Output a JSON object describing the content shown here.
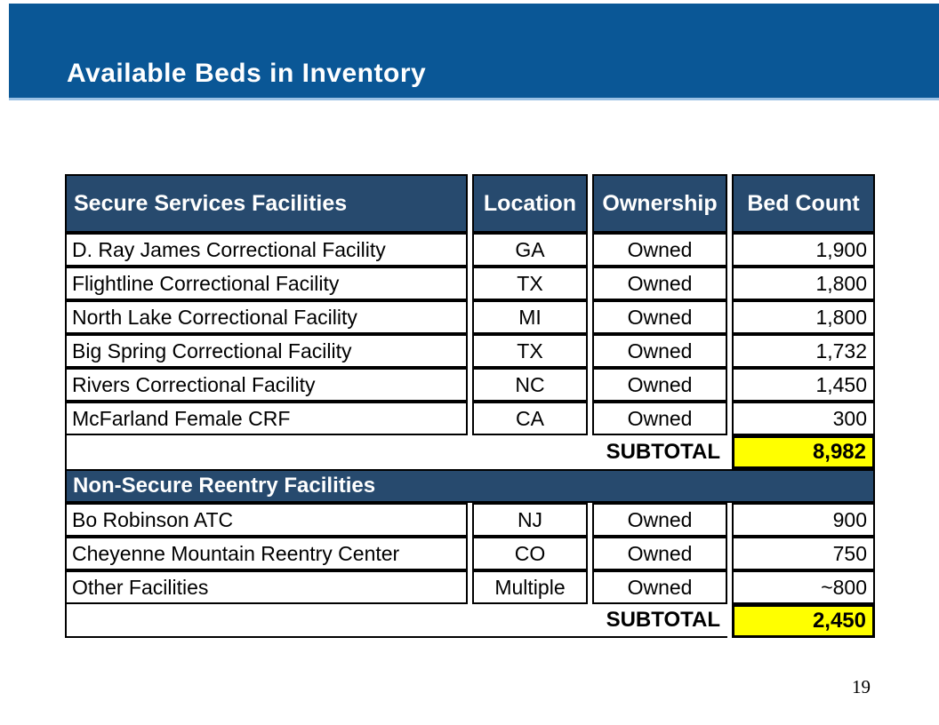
{
  "slide": {
    "title": "Available Beds in Inventory",
    "page_number": "19"
  },
  "colors": {
    "title_bar_blue": "#0A5796",
    "title_bar_underline": "#9CC2E5",
    "table_header_navy": "#274A6E",
    "subtotal_highlight_yellow": "#FFFF00",
    "border_black": "#000000"
  },
  "table": {
    "columns": [
      "Secure Services Facilities",
      "Location",
      "Ownership",
      "Bed Count"
    ],
    "sections": [
      {
        "rows": [
          {
            "facility": "D. Ray James Correctional Facility",
            "location": "GA",
            "ownership": "Owned",
            "bed_count": "1,900"
          },
          {
            "facility": "Flightline Correctional Facility",
            "location": "TX",
            "ownership": "Owned",
            "bed_count": "1,800"
          },
          {
            "facility": "North Lake Correctional Facility",
            "location": "MI",
            "ownership": "Owned",
            "bed_count": "1,800"
          },
          {
            "facility": "Big Spring Correctional Facility",
            "location": "TX",
            "ownership": "Owned",
            "bed_count": "1,732"
          },
          {
            "facility": "Rivers Correctional Facility",
            "location": "NC",
            "ownership": "Owned",
            "bed_count": "1,450"
          },
          {
            "facility": "McFarland Female CRF",
            "location": "CA",
            "ownership": "Owned",
            "bed_count": "300"
          }
        ],
        "subtotal": {
          "label": "SUBTOTAL",
          "value": "8,982"
        }
      },
      {
        "header": "Non-Secure Reentry Facilities",
        "rows": [
          {
            "facility": "Bo Robinson ATC",
            "location": "NJ",
            "ownership": "Owned",
            "bed_count": "900"
          },
          {
            "facility": "Cheyenne Mountain Reentry Center",
            "location": "CO",
            "ownership": "Owned",
            "bed_count": "750"
          },
          {
            "facility": "Other Facilities",
            "location": "Multiple",
            "ownership": "Owned",
            "bed_count": "~800"
          }
        ],
        "subtotal": {
          "label": "SUBTOTAL",
          "value": "2,450"
        }
      }
    ]
  }
}
